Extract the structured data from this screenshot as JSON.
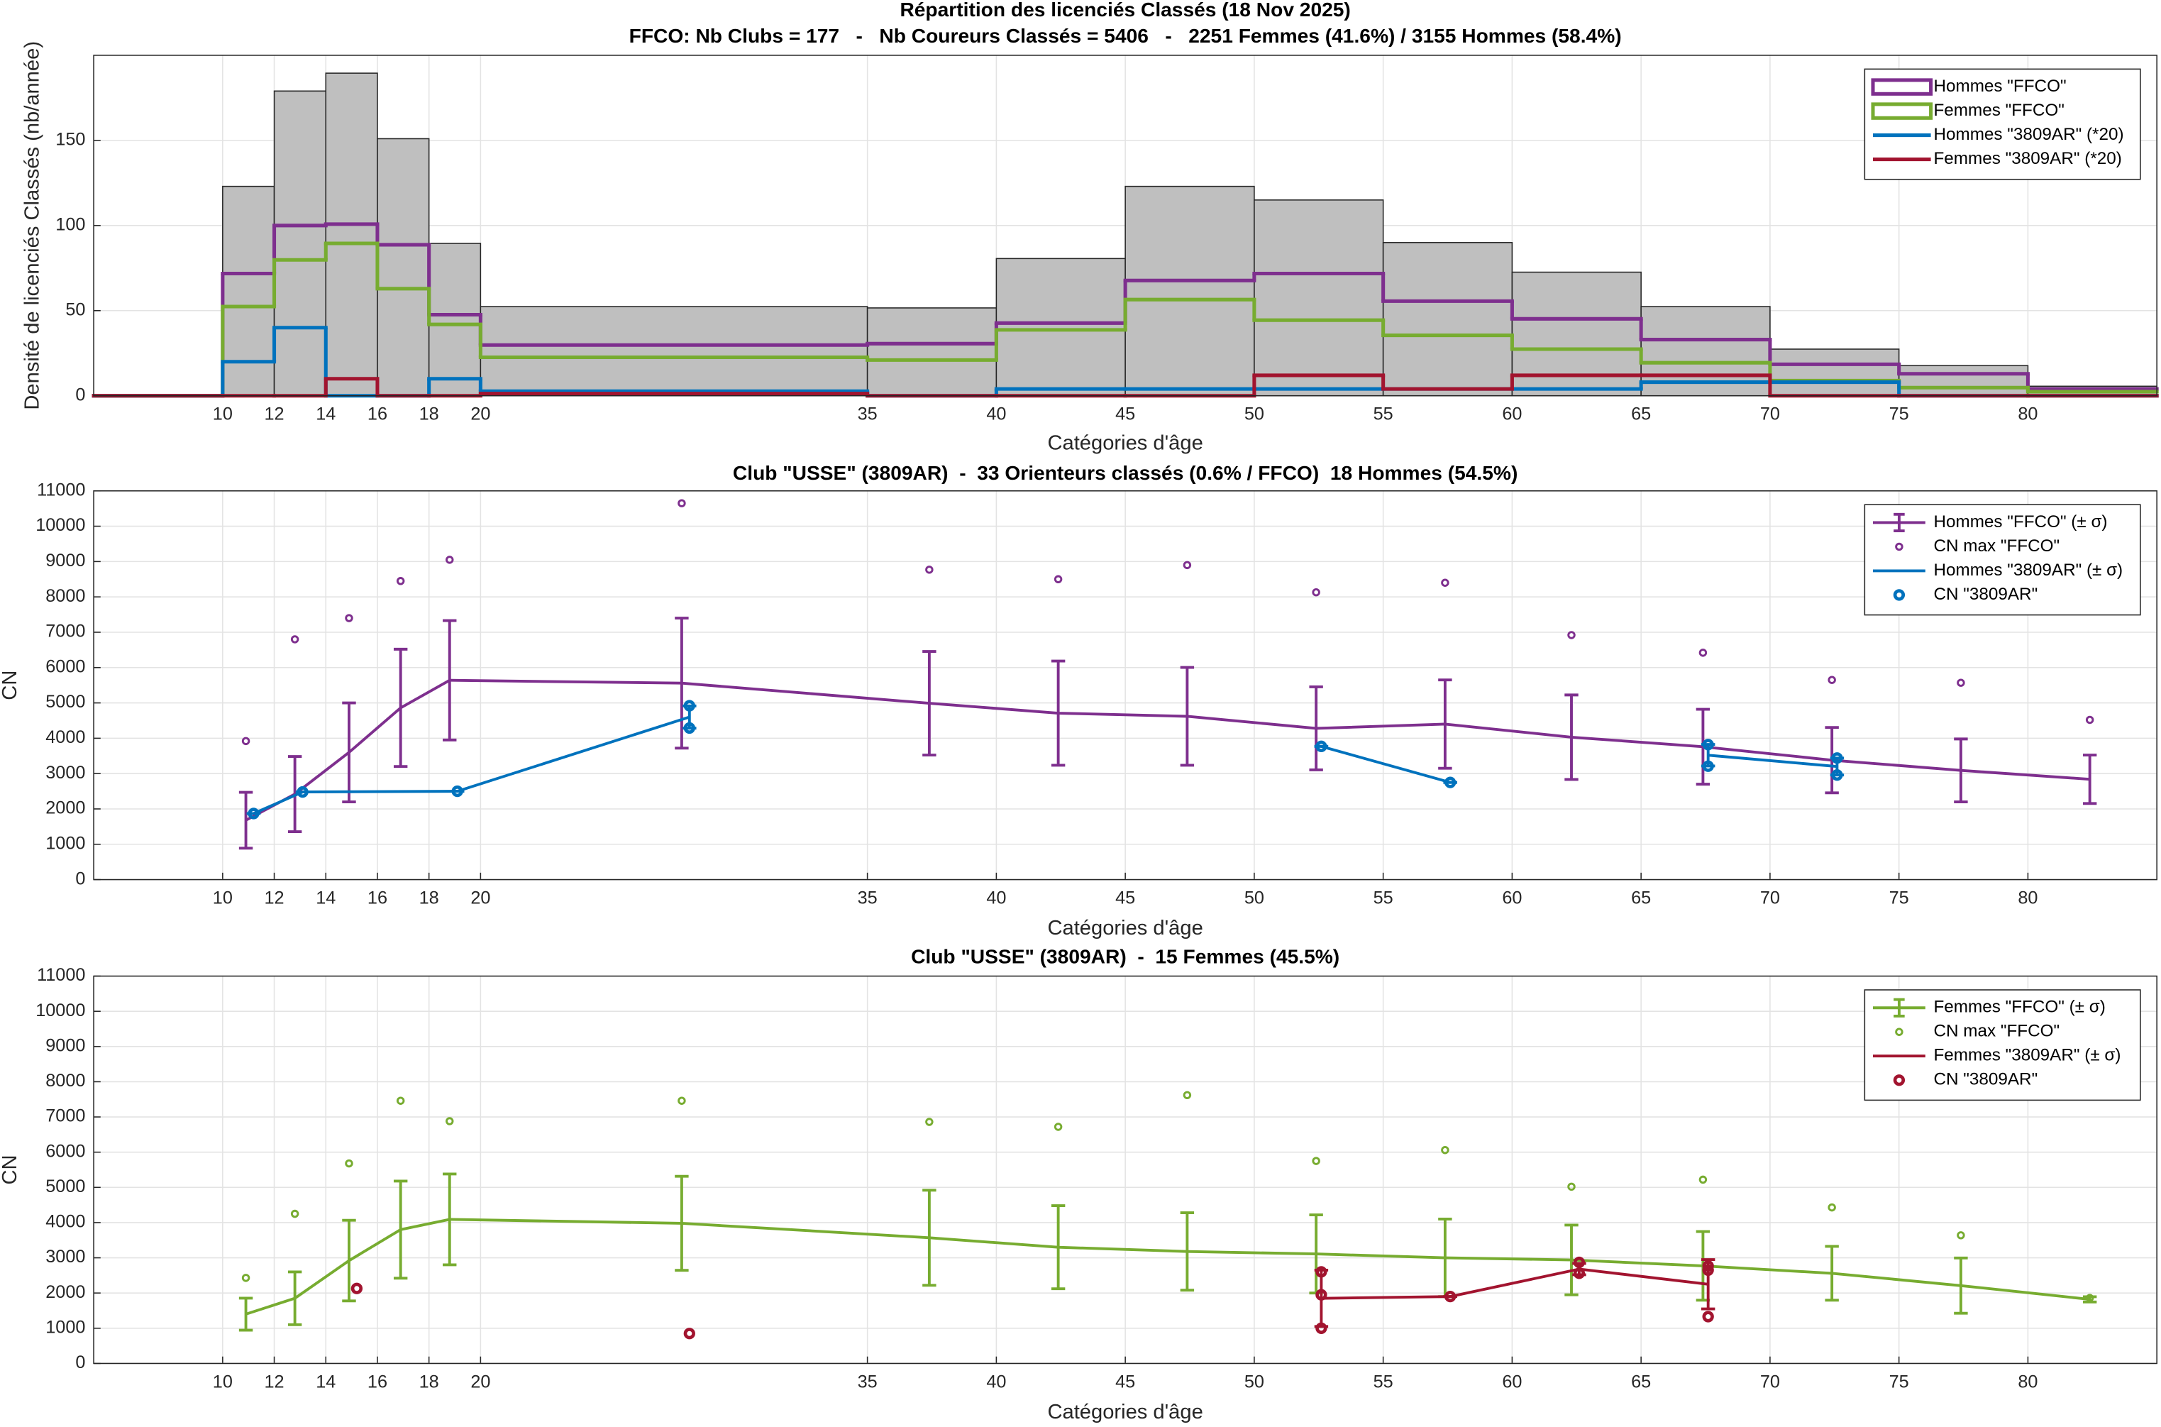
{
  "chart_data": [
    {
      "type": "histogram",
      "title": "Répartition des licenciés Classés (18 Nov 2025)",
      "subtitle": "FFCO: Nb Clubs = 177   -   Nb Coureurs Classés = 5406   -   2251 Femmes (41.6%) / 3155 Hommes (58.4%)",
      "xlabel": "Catégories d'âge",
      "ylabel": "Densité de licenciés Classés (nb/année)",
      "xlim": [
        5,
        85
      ],
      "xticks": [
        10,
        12,
        14,
        16,
        18,
        20,
        35,
        40,
        45,
        50,
        55,
        60,
        65,
        70,
        75,
        80
      ],
      "ylim": [
        0,
        200
      ],
      "yticks": [
        0,
        50,
        100,
        150
      ],
      "grid": true,
      "legend": "upper right",
      "color": "#bfbfbf",
      "bins": [
        5,
        10,
        12,
        14,
        16,
        18,
        20,
        35,
        40,
        45,
        50,
        55,
        60,
        65,
        70,
        75,
        80,
        85
      ],
      "values": [
        0,
        123,
        179,
        189.5,
        151,
        89.5,
        52.4,
        51.6,
        80.6,
        123,
        115,
        90,
        72.6,
        52.4,
        27.4,
        17.7,
        5.6
      ],
      "series": [
        {
          "name": "Hommes \"FFCO\"",
          "color": "#7e2f8e",
          "values": [
            0,
            71.8,
            100,
            100.8,
            88.7,
            47.6,
            29.8,
            30.6,
            42.7,
            67.7,
            71.8,
            55.6,
            45.2,
            33,
            18.5,
            12.9,
            4
          ]
        },
        {
          "name": "Femmes \"FFCO\"",
          "color": "#77ac30",
          "values": [
            0,
            52.4,
            79.8,
            89.5,
            62.9,
            41.9,
            22.6,
            21,
            38.7,
            56.5,
            44.4,
            35.5,
            27.4,
            19.4,
            8.9,
            4.8,
            2.4
          ]
        },
        {
          "name": "Hommes \"3809AR\" (*20)",
          "color": "#0072bd",
          "values": [
            0,
            20,
            40,
            0,
            0,
            10,
            2.7,
            0,
            4,
            4,
            4,
            4,
            4,
            8,
            8,
            0,
            0
          ]
        },
        {
          "name": "Femmes \"3809AR\" (*20)",
          "color": "#a2142f",
          "values": [
            0,
            0,
            0,
            10,
            0,
            0,
            1.3,
            0,
            0,
            0,
            12,
            4,
            12,
            12,
            0,
            0,
            0
          ]
        }
      ]
    },
    {
      "type": "errorbar",
      "title": "Club \"USSE\" (3809AR)  -  33 Orienteurs classés (0.6% / FFCO)  18 Hommes (54.5%)",
      "xlabel": "Catégories d'âge",
      "ylabel": "CN",
      "xlim": [
        5,
        85
      ],
      "xticks": [
        10,
        12,
        14,
        16,
        18,
        20,
        35,
        40,
        45,
        50,
        55,
        60,
        65,
        70,
        75,
        80
      ],
      "ylim": [
        0,
        11000
      ],
      "yticks": [
        0,
        1000,
        2000,
        3000,
        4000,
        5000,
        6000,
        7000,
        8000,
        9000,
        10000,
        11000
      ],
      "grid": true,
      "legend": "upper right",
      "series": [
        {
          "name": "Hommes \"FFCO\" (± σ)",
          "color": "#7e2f8e",
          "style": "errorbar",
          "x": [
            10.9,
            12.8,
            14.9,
            16.9,
            18.8,
            27.8,
            37.4,
            42.4,
            47.4,
            52.4,
            57.4,
            62.3,
            67.4,
            72.4,
            77.4,
            82.4
          ],
          "values": [
            1680,
            2420,
            3600,
            4860,
            5640,
            5560,
            4990,
            4710,
            4620,
            4280,
            4400,
            4030,
            3760,
            3380,
            3090,
            2840
          ],
          "errors": [
            790,
            1065,
            1400,
            1660,
            1690,
            1840,
            1465,
            1475,
            1385,
            1175,
            1250,
            1195,
            1060,
            925,
            890,
            685
          ]
        },
        {
          "name": "CN max \"FFCO\"",
          "color": "#7e2f8e",
          "style": "markers",
          "x": [
            10.9,
            12.8,
            14.9,
            16.9,
            18.8,
            27.8,
            37.4,
            42.4,
            47.4,
            52.4,
            57.4,
            62.3,
            67.4,
            72.4,
            77.4,
            82.4
          ],
          "values": [
            3920,
            6800,
            7400,
            8450,
            9050,
            10650,
            8770,
            8500,
            8900,
            8130,
            8400,
            6920,
            6420,
            5650,
            5570,
            4520
          ]
        },
        {
          "name": "Hommes \"3809AR\" (± σ)",
          "color": "#0072bd",
          "style": "errorbar",
          "x": [
            11.2,
            13.1,
            19.1,
            28.1,
            null,
            52.6,
            57.6,
            null,
            67.6,
            72.6
          ],
          "values": [
            1870,
            2480,
            2500,
            4600,
            null,
            3770,
            2750,
            null,
            3520,
            3200
          ],
          "errors": [
            0,
            0,
            0,
            315,
            null,
            0,
            0,
            null,
            305,
            240
          ]
        },
        {
          "name": "CN \"3809AR\"",
          "color": "#0072bd",
          "style": "markers",
          "x": [
            11.2,
            13.1,
            19.1,
            28.1,
            28.1,
            52.6,
            57.6,
            67.6,
            67.6,
            72.6,
            72.6
          ],
          "values": [
            1870,
            2480,
            2500,
            4920,
            4290,
            3770,
            2750,
            3820,
            3210,
            3440,
            2960
          ]
        }
      ]
    },
    {
      "type": "errorbar",
      "title": "Club \"USSE\" (3809AR)  -  15 Femmes (45.5%)",
      "xlabel": "Catégories d'âge",
      "ylabel": "CN",
      "xlim": [
        5,
        85
      ],
      "xticks": [
        10,
        12,
        14,
        16,
        18,
        20,
        35,
        40,
        45,
        50,
        55,
        60,
        65,
        70,
        75,
        80
      ],
      "ylim": [
        0,
        11000
      ],
      "yticks": [
        0,
        1000,
        2000,
        3000,
        4000,
        5000,
        6000,
        7000,
        8000,
        9000,
        10000,
        11000
      ],
      "grid": true,
      "legend": "upper right",
      "series": [
        {
          "name": "Femmes \"FFCO\" (± σ)",
          "color": "#77ac30",
          "style": "errorbar",
          "x": [
            10.9,
            12.8,
            14.9,
            16.9,
            18.8,
            27.8,
            37.4,
            42.4,
            47.4,
            52.4,
            57.4,
            62.3,
            67.4,
            72.4,
            77.4,
            82.4
          ],
          "values": [
            1400,
            1850,
            2920,
            3800,
            4090,
            3980,
            3570,
            3300,
            3180,
            3110,
            3000,
            2940,
            2770,
            2560,
            2210,
            1820
          ],
          "errors": [
            455,
            750,
            1145,
            1380,
            1290,
            1335,
            1350,
            1180,
            1100,
            1110,
            1100,
            990,
            975,
            765,
            785,
            75
          ]
        },
        {
          "name": "CN max \"FFCO\"",
          "color": "#77ac30",
          "style": "markers",
          "x": [
            10.9,
            12.8,
            14.9,
            16.9,
            18.8,
            27.8,
            37.4,
            42.4,
            47.4,
            52.4,
            57.4,
            62.3,
            67.4,
            72.4,
            77.4,
            82.4
          ],
          "values": [
            2430,
            4250,
            5680,
            7460,
            6880,
            7460,
            6860,
            6720,
            7620,
            5750,
            6060,
            5020,
            5220,
            4430,
            3640,
            1860
          ]
        },
        {
          "name": "Femmes \"3809AR\" (± σ)",
          "color": "#a2142f",
          "style": "errorbar",
          "x": [
            52.6,
            57.6,
            62.6,
            67.6
          ],
          "values": [
            1850,
            1900,
            2680,
            2250
          ],
          "errors": [
            800,
            0,
            160,
            700
          ]
        },
        {
          "name": "CN \"3809AR\"",
          "color": "#a2142f",
          "style": "markers",
          "x": [
            15.2,
            28.1,
            52.6,
            52.6,
            52.6,
            57.6,
            62.6,
            62.6,
            67.6,
            67.6,
            67.6
          ],
          "values": [
            2130,
            850,
            2600,
            1950,
            1000,
            1900,
            2870,
            2560,
            2770,
            2650,
            1330
          ]
        }
      ]
    }
  ]
}
